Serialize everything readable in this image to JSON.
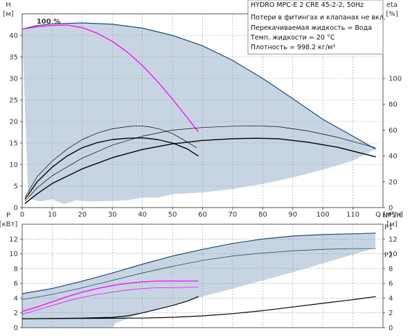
{
  "colors": {
    "region_fill": "#c7d5e3",
    "envelope_stroke": "#1f4a73",
    "magenta": "#ff00ff",
    "black": "#000000",
    "grid": "#9a9a9a",
    "axis": "#555555",
    "text": "#333333"
  },
  "info": {
    "title": "HYDRO MPC-E 2 CRE 45-2-2, 50Hz",
    "lines": [
      "Потери в фитингах и клапанах не вкл.",
      "Перекачиваемая жидкость = Вода",
      "Темп. жидкости = 20 °C",
      "Плотность = 998.2 кг/м³"
    ]
  },
  "chart_data": [
    {
      "type": "line",
      "name": "performance",
      "y_title": "H",
      "y_unit": "[м]",
      "y2_title": "eta",
      "y2_unit": "[%]",
      "x_unit": "Q [м³/ч]",
      "xlim": [
        0,
        120
      ],
      "ylim": [
        0,
        45
      ],
      "y2lim": [
        0,
        150
      ],
      "x_ticks": [
        0,
        10,
        20,
        30,
        40,
        50,
        60,
        70,
        80,
        90,
        100,
        110
      ],
      "y_ticks": [
        0,
        5,
        10,
        15,
        20,
        25,
        30,
        35,
        40
      ],
      "y2_ticks": [
        0,
        20,
        40,
        60,
        80,
        100
      ],
      "grid": true,
      "annotations": [
        {
          "text": "100 %",
          "x": 2.5,
          "y": 42.4
        }
      ],
      "region": {
        "top": [
          [
            0,
            41.5
          ],
          [
            5,
            42.3
          ],
          [
            10,
            42.7
          ],
          [
            20,
            42.9
          ],
          [
            30,
            42.6
          ],
          [
            40,
            41.7
          ],
          [
            50,
            40.0
          ],
          [
            60,
            37.6
          ],
          [
            70,
            34.2
          ],
          [
            80,
            30.0
          ],
          [
            90,
            25.3
          ],
          [
            100,
            20.5
          ],
          [
            105,
            18.6
          ],
          [
            110,
            16.6
          ],
          [
            117.5,
            13.6
          ]
        ],
        "bottom": [
          [
            117.5,
            13.6
          ],
          [
            110,
            10.9
          ],
          [
            100,
            8.8
          ],
          [
            90,
            7.0
          ],
          [
            80,
            5.5
          ],
          [
            70,
            4.3
          ],
          [
            60,
            3.5
          ],
          [
            50,
            3.1
          ],
          [
            45,
            2.3
          ],
          [
            40,
            2.3
          ],
          [
            35,
            1.7
          ],
          [
            28,
            1.5
          ],
          [
            22,
            1.4
          ],
          [
            18,
            1.7
          ],
          [
            14,
            0.8
          ],
          [
            10,
            1.9
          ],
          [
            6,
            1.4
          ],
          [
            3,
            1.9
          ],
          [
            2,
            2.3
          ]
        ]
      },
      "series": [
        {
          "role": "head-envelope",
          "color": "envelope",
          "width": 1.2,
          "points": [
            [
              0,
              41.5
            ],
            [
              5,
              42.3
            ],
            [
              10,
              42.7
            ],
            [
              20,
              42.9
            ],
            [
              30,
              42.6
            ],
            [
              40,
              41.7
            ],
            [
              50,
              40.0
            ],
            [
              60,
              37.6
            ],
            [
              70,
              34.2
            ],
            [
              80,
              30.0
            ],
            [
              90,
              25.3
            ],
            [
              100,
              20.5
            ],
            [
              110,
              16.6
            ],
            [
              117.5,
              13.6
            ]
          ]
        },
        {
          "role": "head-single-pump-100",
          "color": "magenta",
          "width": 1.3,
          "points": [
            [
              0,
              41.5
            ],
            [
              5,
              42.0
            ],
            [
              10,
              42.3
            ],
            [
              15,
              42.4
            ],
            [
              20,
              41.8
            ],
            [
              25,
              40.5
            ],
            [
              30,
              38.6
            ],
            [
              35,
              36.1
            ],
            [
              40,
              33.0
            ],
            [
              45,
              29.3
            ],
            [
              50,
              25.2
            ],
            [
              55,
              20.8
            ],
            [
              58.5,
              17.7
            ]
          ]
        },
        {
          "role": "head-thin-left",
          "color": "black",
          "width": 0.7,
          "points": [
            [
              1,
              2.5
            ],
            [
              5,
              7.2
            ],
            [
              10,
              10.8
            ],
            [
              15,
              13.6
            ],
            [
              20,
              15.8
            ],
            [
              25,
              17.3
            ],
            [
              30,
              18.3
            ],
            [
              35,
              18.8
            ],
            [
              38,
              19.0
            ],
            [
              42,
              18.8
            ],
            [
              46,
              18.2
            ],
            [
              50,
              17.2
            ],
            [
              54,
              15.6
            ],
            [
              58,
              13.9
            ]
          ]
        },
        {
          "role": "head-thick-left",
          "color": "black",
          "width": 1.4,
          "points": [
            [
              1,
              2.0
            ],
            [
              5,
              6.0
            ],
            [
              10,
              9.4
            ],
            [
              15,
              12.0
            ],
            [
              20,
              13.9
            ],
            [
              25,
              15.1
            ],
            [
              30,
              15.8
            ],
            [
              35,
              16.1
            ],
            [
              40,
              16.2
            ],
            [
              45,
              15.8
            ],
            [
              50,
              15.0
            ],
            [
              55,
              13.6
            ],
            [
              58.5,
              12.0
            ]
          ]
        },
        {
          "role": "head-thin-right",
          "color": "black",
          "width": 0.7,
          "points": [
            [
              1,
              1.5
            ],
            [
              5,
              4.6
            ],
            [
              10,
              7.4
            ],
            [
              20,
              11.5
            ],
            [
              30,
              14.5
            ],
            [
              40,
              16.6
            ],
            [
              50,
              18.0
            ],
            [
              60,
              18.6
            ],
            [
              70,
              18.9
            ],
            [
              76,
              19.0
            ],
            [
              85,
              18.8
            ],
            [
              95,
              17.8
            ],
            [
              105,
              16.3
            ],
            [
              117.5,
              13.9
            ]
          ]
        },
        {
          "role": "head-thick-right",
          "color": "black",
          "width": 1.4,
          "points": [
            [
              1,
              1.0
            ],
            [
              5,
              3.2
            ],
            [
              10,
              5.6
            ],
            [
              20,
              9.0
            ],
            [
              30,
              11.6
            ],
            [
              40,
              13.5
            ],
            [
              50,
              14.8
            ],
            [
              60,
              15.6
            ],
            [
              70,
              16.0
            ],
            [
              78,
              16.1
            ],
            [
              85,
              16.0
            ],
            [
              95,
              15.2
            ],
            [
              105,
              14.0
            ],
            [
              117.5,
              11.8
            ]
          ]
        }
      ]
    },
    {
      "type": "line",
      "name": "power-npsh",
      "y_title": "P",
      "y_unit": "[кВт]",
      "y2_title": "NPSH",
      "y2_unit": "[м]",
      "xlim": [
        0,
        120
      ],
      "ylim": [
        0,
        14
      ],
      "y2lim": [
        0,
        14
      ],
      "y_ticks": [
        0,
        2,
        4,
        6,
        8,
        10,
        12
      ],
      "y2_ticks": [
        0,
        2,
        4,
        6,
        8,
        10,
        12
      ],
      "grid": true,
      "annotations": [
        {
          "text": "P1",
          "x": 119.5,
          "y": 13.6
        },
        {
          "text": "P2",
          "x": 119.5,
          "y": 9.8
        }
      ],
      "region": {
        "top": [
          [
            0,
            4.6
          ],
          [
            10,
            5.3
          ],
          [
            20,
            6.3
          ],
          [
            30,
            7.4
          ],
          [
            40,
            8.6
          ],
          [
            50,
            9.7
          ],
          [
            60,
            10.6
          ],
          [
            70,
            11.4
          ],
          [
            80,
            12.0
          ],
          [
            90,
            12.4
          ],
          [
            100,
            12.6
          ],
          [
            110,
            12.7
          ],
          [
            117.5,
            12.8
          ]
        ],
        "bottom": [
          [
            117.5,
            10.8
          ],
          [
            100,
            8.7
          ],
          [
            90,
            7.5
          ],
          [
            80,
            6.4
          ],
          [
            70,
            5.3
          ],
          [
            60,
            4.2
          ],
          [
            50,
            3.1
          ],
          [
            40,
            2.0
          ],
          [
            35,
            1.2
          ],
          [
            31,
            0.6
          ],
          [
            30,
            0.0
          ],
          [
            0,
            0.0
          ]
        ]
      },
      "series": [
        {
          "role": "P1-envelope",
          "color": "envelope",
          "width": 1.2,
          "points": [
            [
              0,
              4.6
            ],
            [
              10,
              5.3
            ],
            [
              20,
              6.3
            ],
            [
              30,
              7.4
            ],
            [
              40,
              8.6
            ],
            [
              50,
              9.7
            ],
            [
              60,
              10.6
            ],
            [
              70,
              11.4
            ],
            [
              80,
              12.0
            ],
            [
              90,
              12.4
            ],
            [
              100,
              12.6
            ],
            [
              110,
              12.7
            ],
            [
              117.5,
              12.8
            ]
          ]
        },
        {
          "role": "P2-envelope",
          "color": "envelope",
          "width": 0.8,
          "points": [
            [
              0,
              3.8
            ],
            [
              10,
              4.5
            ],
            [
              20,
              5.4
            ],
            [
              30,
              6.4
            ],
            [
              40,
              7.4
            ],
            [
              50,
              8.3
            ],
            [
              60,
              9.1
            ],
            [
              70,
              9.7
            ],
            [
              80,
              10.1
            ],
            [
              90,
              10.4
            ],
            [
              100,
              10.6
            ],
            [
              110,
              10.7
            ],
            [
              117.5,
              10.7
            ]
          ]
        },
        {
          "role": "P1-single-pump",
          "color": "magenta",
          "width": 1.3,
          "points": [
            [
              0,
              2.2
            ],
            [
              5,
              2.8
            ],
            [
              10,
              3.5
            ],
            [
              15,
              4.2
            ],
            [
              20,
              4.8
            ],
            [
              25,
              5.3
            ],
            [
              30,
              5.7
            ],
            [
              35,
              6.0
            ],
            [
              40,
              6.2
            ],
            [
              45,
              6.3
            ],
            [
              50,
              6.3
            ],
            [
              58.5,
              6.3
            ]
          ]
        },
        {
          "role": "P2-single-pump",
          "color": "magenta",
          "width": 0.8,
          "points": [
            [
              0,
              1.8
            ],
            [
              5,
              2.4
            ],
            [
              10,
              3.0
            ],
            [
              15,
              3.6
            ],
            [
              20,
              4.1
            ],
            [
              25,
              4.5
            ],
            [
              30,
              4.8
            ],
            [
              35,
              5.1
            ],
            [
              40,
              5.3
            ],
            [
              45,
              5.4
            ],
            [
              50,
              5.4
            ],
            [
              58.5,
              5.5
            ]
          ]
        },
        {
          "role": "NPSH-left",
          "color": "black",
          "width": 1.2,
          "points": [
            [
              0,
              1.2
            ],
            [
              10,
              1.25
            ],
            [
              20,
              1.3
            ],
            [
              30,
              1.4
            ],
            [
              35,
              1.6
            ],
            [
              40,
              2.0
            ],
            [
              45,
              2.5
            ],
            [
              50,
              3.0
            ],
            [
              55,
              3.6
            ],
            [
              58.5,
              4.2
            ]
          ]
        },
        {
          "role": "NPSH-right",
          "color": "black",
          "width": 1.2,
          "points": [
            [
              0,
              1.2
            ],
            [
              20,
              1.25
            ],
            [
              40,
              1.3
            ],
            [
              50,
              1.4
            ],
            [
              60,
              1.6
            ],
            [
              70,
              1.9
            ],
            [
              80,
              2.3
            ],
            [
              90,
              2.8
            ],
            [
              100,
              3.3
            ],
            [
              110,
              3.8
            ],
            [
              117.5,
              4.2
            ]
          ]
        }
      ]
    }
  ]
}
